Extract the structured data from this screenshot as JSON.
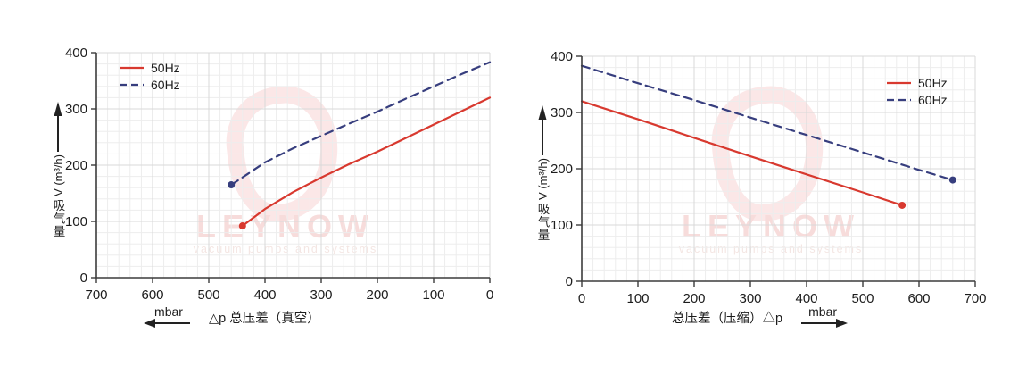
{
  "chart_data": [
    {
      "type": "line",
      "x_dir": "reversed",
      "xlim": [
        0,
        700
      ],
      "ylim": [
        0,
        400
      ],
      "xticks": [
        700,
        600,
        500,
        400,
        300,
        200,
        100,
        0
      ],
      "yticks": [
        0,
        100,
        200,
        300,
        400
      ],
      "minor_step": 20,
      "grid": "on",
      "xlabel": "△p  总压差（真空）",
      "x_unit": "mbar",
      "x_arrow": "left",
      "ylabel_cn": "吸气量",
      "ylabel_unit": "V (m³/h)",
      "legend_pos": "top-left",
      "watermark_text": "LEYNOW",
      "watermark_subtext": "vacuum pumps and systems",
      "series": [
        {
          "name": "50Hz",
          "style": "solid",
          "color": "#d8392f",
          "marker": [
            440,
            92
          ],
          "points": [
            [
              440,
              92
            ],
            [
              400,
              122
            ],
            [
              350,
              152
            ],
            [
              300,
              178
            ],
            [
              250,
              202
            ],
            [
              200,
              224
            ],
            [
              150,
              248
            ],
            [
              100,
              272
            ],
            [
              50,
              296
            ],
            [
              0,
              320
            ]
          ]
        },
        {
          "name": "60Hz",
          "style": "dashed",
          "color": "#373e7e",
          "marker": [
            460,
            165
          ],
          "points": [
            [
              460,
              165
            ],
            [
              400,
              205
            ],
            [
              350,
              230
            ],
            [
              300,
              252
            ],
            [
              250,
              274
            ],
            [
              200,
              295
            ],
            [
              150,
              318
            ],
            [
              100,
              340
            ],
            [
              50,
              362
            ],
            [
              0,
              383
            ]
          ]
        }
      ]
    },
    {
      "type": "line",
      "x_dir": "normal",
      "xlim": [
        0,
        700
      ],
      "ylim": [
        0,
        400
      ],
      "xticks": [
        0,
        100,
        200,
        300,
        400,
        500,
        600,
        700
      ],
      "yticks": [
        0,
        100,
        200,
        300,
        400
      ],
      "minor_step": 20,
      "grid": "on",
      "xlabel": "总压差（压缩）△p",
      "x_unit": "mbar",
      "x_arrow": "right",
      "ylabel_cn": "吸气量",
      "ylabel_unit": "V (m³/h)",
      "legend_pos": "top-right",
      "watermark_text": "LEYNOW",
      "watermark_subtext": "vacuum pumps and systems",
      "series": [
        {
          "name": "50Hz",
          "style": "solid",
          "color": "#d8392f",
          "marker": [
            570,
            135
          ],
          "points": [
            [
              0,
              320
            ],
            [
              100,
              288
            ],
            [
              200,
              255
            ],
            [
              300,
              222
            ],
            [
              400,
              190
            ],
            [
              500,
              158
            ],
            [
              570,
              135
            ]
          ]
        },
        {
          "name": "60Hz",
          "style": "dashed",
          "color": "#373e7e",
          "marker": [
            660,
            180
          ],
          "points": [
            [
              0,
              383
            ],
            [
              100,
              352
            ],
            [
              200,
              322
            ],
            [
              300,
              291
            ],
            [
              400,
              260
            ],
            [
              500,
              229
            ],
            [
              600,
              198
            ],
            [
              660,
              180
            ]
          ]
        }
      ]
    }
  ],
  "colors": {
    "curve_50hz": "#d8392f",
    "curve_60hz": "#373e7e",
    "grid_minor": "#ededed",
    "grid_major": "#d9d9d9",
    "axis": "#3c3c3c",
    "watermark_pink": "#fbe7e7"
  }
}
